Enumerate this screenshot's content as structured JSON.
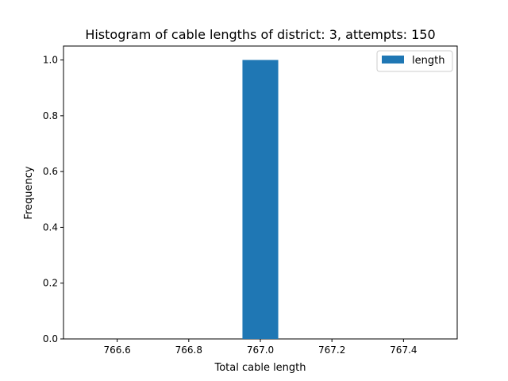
{
  "chart_data": {
    "type": "bar",
    "title": "Histogram of cable lengths of district: 3, attempts: 150",
    "xlabel": "Total cable length",
    "ylabel": "Frequency",
    "xlim": [
      766.45,
      767.55
    ],
    "ylim": [
      0,
      1.05
    ],
    "x_ticks": [
      "766.6",
      "766.8",
      "767.0",
      "767.2",
      "767.4"
    ],
    "y_ticks": [
      "0.0",
      "0.2",
      "0.4",
      "0.6",
      "0.8",
      "1.0"
    ],
    "bins": [
      {
        "x_start": 766.95,
        "x_end": 767.05,
        "value": 1
      }
    ],
    "series": [
      {
        "name": "length",
        "color": "#1f77b4"
      }
    ],
    "legend": {
      "position": "top-right",
      "entries": [
        "length"
      ]
    },
    "grid": false
  }
}
